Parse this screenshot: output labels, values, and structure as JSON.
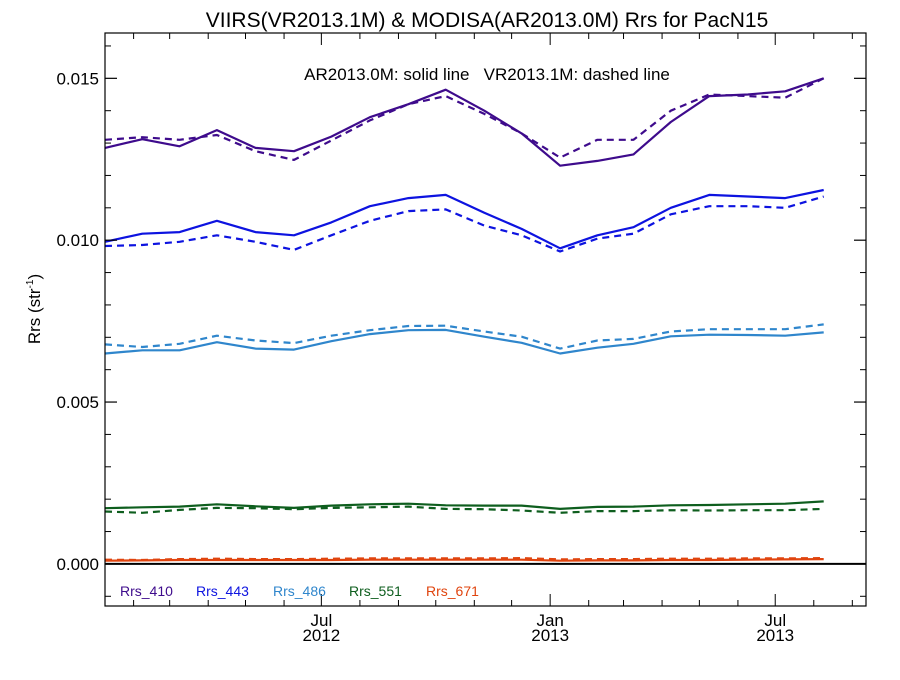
{
  "chart_data": {
    "type": "line",
    "title": "VIIRS(VR2013.1M) & MODISA(AR2013.0M)  Rrs for PacN15",
    "annotation": "AR2013.0M: solid line   VR2013.1M: dashed line",
    "ylabel": "Rrs (str",
    "ylabel_sup": "-1",
    "xlabel": "",
    "ylim": [
      -0.0013,
      0.0164
    ],
    "xlim": [
      "2012-01-09",
      "2013-09-12"
    ],
    "grid": false,
    "legend_position": "bottom-left",
    "yticks": [
      {
        "value": 0.0,
        "label": "0.000"
      },
      {
        "value": 0.005,
        "label": "0.005"
      },
      {
        "value": 0.01,
        "label": "0.010"
      },
      {
        "value": 0.015,
        "label": "0.015"
      }
    ],
    "xticks": [
      {
        "date": "2012-07-01",
        "label": "Jul",
        "year": "2012"
      },
      {
        "date": "2013-01-01",
        "label": "Jan",
        "year": "2013"
      },
      {
        "date": "2013-07-01",
        "label": "Jul",
        "year": "2013"
      }
    ],
    "x": [
      "2012-01-09",
      "2012-02-08",
      "2012-03-09",
      "2012-04-08",
      "2012-05-09",
      "2012-06-09",
      "2012-07-09",
      "2012-08-09",
      "2012-09-09",
      "2012-10-09",
      "2012-11-09",
      "2012-12-09",
      "2013-01-09",
      "2013-02-08",
      "2013-03-09",
      "2013-04-08",
      "2013-05-09",
      "2013-06-09",
      "2013-07-09",
      "2013-08-09",
      "2013-09-12"
    ],
    "zero_line": true,
    "series": [
      {
        "name": "Rrs_410",
        "color": "#3e0b8c",
        "solid": [
          0.01285,
          0.01312,
          0.0129,
          0.0134,
          0.01285,
          0.01275,
          0.0132,
          0.0138,
          0.0142,
          0.01465,
          0.014,
          0.0133,
          0.0123,
          0.01245,
          0.01265,
          0.01365,
          0.01445,
          0.0145,
          0.0146,
          0.015,
          null
        ],
        "dashed": [
          0.0131,
          0.01318,
          0.0131,
          0.01325,
          0.01275,
          0.01248,
          0.01308,
          0.0137,
          0.0142,
          0.01445,
          0.0139,
          0.0133,
          0.01255,
          0.0131,
          0.0131,
          0.014,
          0.0145,
          0.01445,
          0.0144,
          0.015,
          null
        ]
      },
      {
        "name": "Rrs_443",
        "color": "#0d13e0",
        "solid": [
          0.00995,
          0.0102,
          0.01025,
          0.0106,
          0.01025,
          0.01015,
          0.01055,
          0.01105,
          0.0113,
          0.0114,
          0.01085,
          0.01035,
          0.00975,
          0.01015,
          0.0104,
          0.011,
          0.0114,
          0.01135,
          0.0113,
          0.01155,
          null
        ],
        "dashed": [
          0.00982,
          0.00985,
          0.00995,
          0.01015,
          0.00995,
          0.0097,
          0.01015,
          0.0106,
          0.0109,
          0.01095,
          0.01045,
          0.01015,
          0.00965,
          0.01005,
          0.0102,
          0.0108,
          0.01105,
          0.01105,
          0.011,
          0.01135,
          null
        ]
      },
      {
        "name": "Rrs_486",
        "color": "#2f86cc",
        "solid": [
          0.0065,
          0.0066,
          0.0066,
          0.00685,
          0.00665,
          0.00662,
          0.00688,
          0.0071,
          0.00722,
          0.00723,
          0.00702,
          0.00683,
          0.0065,
          0.00668,
          0.0068,
          0.00703,
          0.00708,
          0.00707,
          0.00705,
          0.00715,
          null
        ],
        "dashed": [
          0.00678,
          0.0067,
          0.0068,
          0.00705,
          0.0069,
          0.00682,
          0.00705,
          0.00722,
          0.00735,
          0.00736,
          0.00718,
          0.00702,
          0.00665,
          0.0069,
          0.00695,
          0.00718,
          0.00725,
          0.00725,
          0.00725,
          0.0074,
          null
        ]
      },
      {
        "name": "Rrs_551",
        "color": "#0e5e1e",
        "solid": [
          0.00172,
          0.00175,
          0.00177,
          0.00184,
          0.00178,
          0.00173,
          0.0018,
          0.00184,
          0.00186,
          0.00181,
          0.0018,
          0.0018,
          0.0017,
          0.00176,
          0.00177,
          0.00181,
          0.00182,
          0.00184,
          0.00186,
          0.00193,
          null
        ],
        "dashed": [
          0.00162,
          0.00158,
          0.00167,
          0.00173,
          0.00172,
          0.00169,
          0.00173,
          0.00175,
          0.00177,
          0.0017,
          0.00169,
          0.00165,
          0.00158,
          0.00163,
          0.00163,
          0.00166,
          0.00165,
          0.00166,
          0.00166,
          0.0017,
          null
        ]
      },
      {
        "name": "Rrs_671",
        "color": "#e0440e",
        "solid": [
          0.0001,
          0.00011,
          0.00012,
          0.00012,
          0.00012,
          0.00012,
          0.00012,
          0.00013,
          0.00013,
          0.00013,
          0.00013,
          0.00013,
          0.0001,
          0.00011,
          0.00011,
          0.00012,
          0.00012,
          0.00013,
          0.00014,
          0.00015,
          null
        ],
        "dashed": [
          0.00013,
          0.00012,
          0.00015,
          0.00016,
          0.00015,
          0.00015,
          0.00016,
          0.00017,
          0.00017,
          0.00017,
          0.00017,
          0.00018,
          0.00014,
          0.00015,
          0.00015,
          0.00016,
          0.00016,
          0.00017,
          0.00017,
          0.00018,
          null
        ]
      }
    ]
  }
}
